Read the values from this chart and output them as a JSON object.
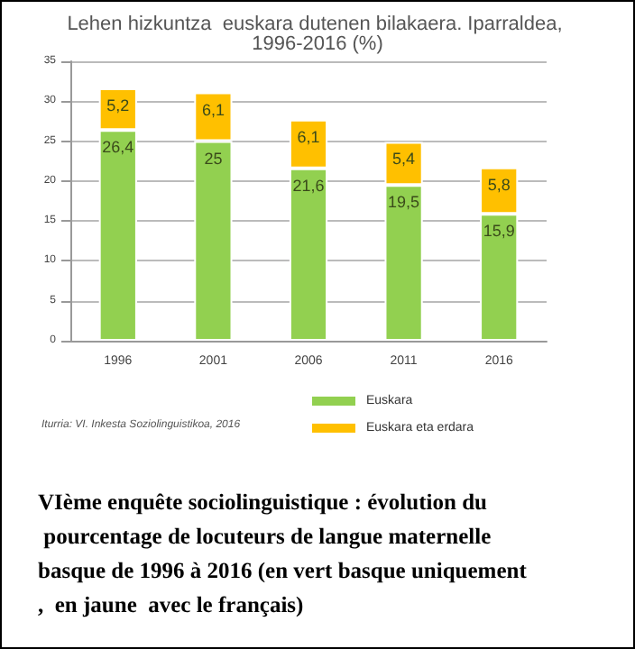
{
  "chart_data": {
    "type": "bar",
    "title": "Lehen hizkuntza  euskara dutenen bilakaera. Iparraldea, 1996-2016 (%)",
    "categories": [
      "1996",
      "2001",
      "2006",
      "2011",
      "2016"
    ],
    "series": [
      {
        "name": "Euskara",
        "color": "#92d050",
        "values": [
          26.4,
          25,
          21.6,
          19.5,
          15.9
        ],
        "value_labels": [
          "26,4",
          "25",
          "21,6",
          "19,5",
          "15,9"
        ]
      },
      {
        "name": "Euskara eta erdara",
        "color": "#ffc000",
        "values": [
          5.2,
          6.1,
          6.1,
          5.4,
          5.8
        ],
        "value_labels": [
          "5,2",
          "6,1",
          "6,1",
          "5,4",
          "5,8"
        ]
      }
    ],
    "stacked": true,
    "ylim": [
      0,
      35
    ],
    "yticks": [
      0,
      5,
      10,
      15,
      20,
      25,
      30,
      35
    ],
    "grid": "y",
    "legend": "bottom",
    "annotations": [
      "Iturria: VI. Inkesta Soziolinguistikoa, 2016",
      "VIème enquête sociolinguistique : évolution du pourcentage de locuteurs de langue maternelle basque de 1996 à 2016 (en vert basque uniquement,  en jaune  avec le français)"
    ]
  }
}
